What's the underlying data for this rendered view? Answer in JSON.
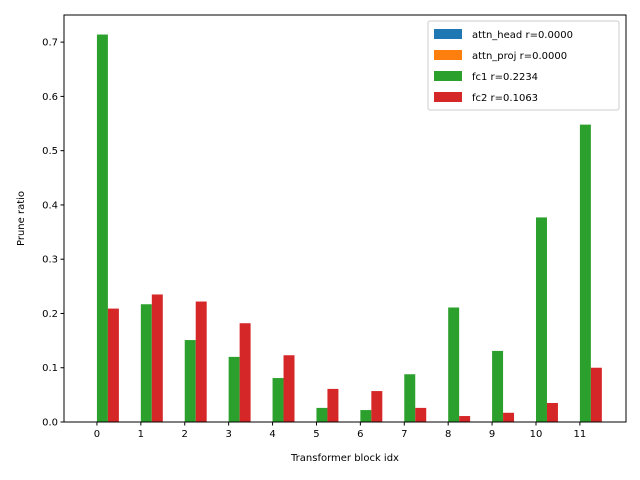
{
  "chart_data": {
    "type": "bar",
    "title": "",
    "xlabel": "Transformer block idx",
    "ylabel": "Prune ratio",
    "categories": [
      "0",
      "1",
      "2",
      "3",
      "4",
      "5",
      "6",
      "7",
      "8",
      "9",
      "10",
      "11"
    ],
    "ylim": [
      0,
      0.75
    ],
    "yticks": [
      "0.0",
      "0.1",
      "0.2",
      "0.3",
      "0.4",
      "0.5",
      "0.6",
      "0.7"
    ],
    "grid": false,
    "legend_position": "top-right",
    "series": [
      {
        "name": "attn_head r=0.0000",
        "color": "#1f77b4",
        "values": [
          0,
          0,
          0,
          0,
          0,
          0,
          0,
          0,
          0,
          0,
          0,
          0
        ]
      },
      {
        "name": "attn_proj r=0.0000",
        "color": "#ff7f0e",
        "values": [
          0,
          0,
          0,
          0,
          0,
          0,
          0,
          0,
          0,
          0,
          0,
          0
        ]
      },
      {
        "name": "fc1 r=0.2234",
        "color": "#2ca02c",
        "values": [
          0.714,
          0.217,
          0.151,
          0.12,
          0.081,
          0.026,
          0.022,
          0.088,
          0.211,
          0.131,
          0.377,
          0.548
        ]
      },
      {
        "name": "fc2 r=0.1063",
        "color": "#d62728",
        "values": [
          0.209,
          0.235,
          0.222,
          0.182,
          0.123,
          0.061,
          0.057,
          0.026,
          0.011,
          0.017,
          0.035,
          0.1
        ]
      }
    ]
  }
}
